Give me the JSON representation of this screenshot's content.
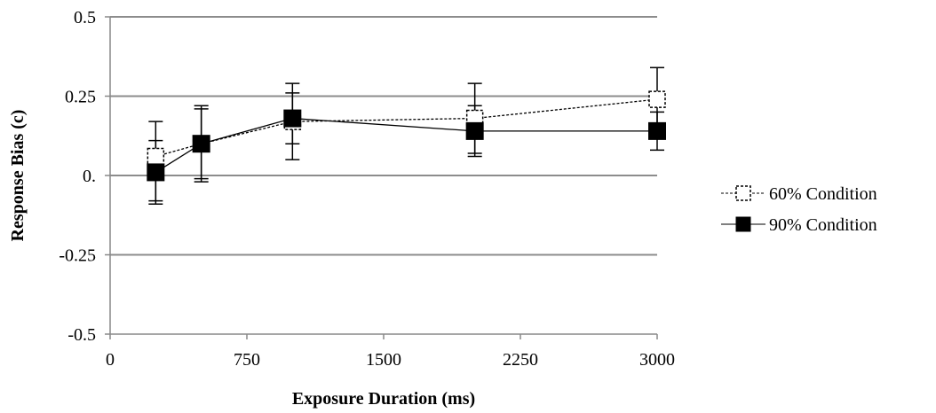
{
  "chart_data": {
    "type": "line",
    "xlabel": "Exposure Duration (ms)",
    "ylabel": "Response Bias (c)",
    "xlim": [
      0,
      3000
    ],
    "ylim": [
      -0.5,
      0.5
    ],
    "x_ticks": [
      0,
      750,
      1500,
      2250,
      3000
    ],
    "x_tick_labels": [
      "0",
      "750",
      "1500",
      "2250",
      "3000"
    ],
    "y_ticks": [
      0.5,
      0.25,
      0,
      -0.25,
      -0.5
    ],
    "y_tick_labels": [
      "0.5",
      "0.25",
      "0.",
      "-0.25",
      "-0.5"
    ],
    "grid": "horizontal",
    "legend_position": "right",
    "series": [
      {
        "name": "60% Condition",
        "marker": "open-square",
        "line_style": "dashed",
        "color": "#000000",
        "x": [
          250,
          500,
          1000,
          2000,
          3000
        ],
        "y": [
          0.06,
          0.1,
          0.17,
          0.18,
          0.24
        ],
        "err_low": [
          -0.09,
          -0.01,
          0.1,
          0.07,
          0.14
        ],
        "err_high": [
          0.17,
          0.21,
          0.26,
          0.29,
          0.34
        ]
      },
      {
        "name": "90% Condition",
        "marker": "filled-square",
        "line_style": "solid",
        "color": "#000000",
        "x": [
          250,
          500,
          1000,
          2000,
          3000
        ],
        "y": [
          0.01,
          0.1,
          0.18,
          0.14,
          0.14
        ],
        "err_low": [
          -0.08,
          -0.02,
          0.05,
          0.06,
          0.08
        ],
        "err_high": [
          0.11,
          0.22,
          0.29,
          0.22,
          0.2
        ]
      }
    ]
  }
}
